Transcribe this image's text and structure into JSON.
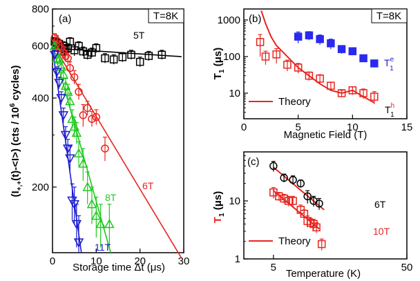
{
  "colors": {
    "black": "#000000",
    "red": "#e8231e",
    "green": "#1ec81e",
    "blue": "#1a1acd",
    "blue_points": "#2a2aee"
  },
  "chart_data": [
    {
      "type": "scatter",
      "panel_label": "(a)",
      "temperature_box": "T=8K",
      "xlabel": "Storage time Δt (μs)",
      "ylabel": "⟨I+,+(t)⟩-⟨I⟩ (cts / 10^6 cycles)",
      "ylabel_parts": {
        "main": "(I",
        "sub1": "+,+",
        "mid": "(t)-<I>) (cts / 10",
        "sup": "6",
        "end": " cycles)"
      },
      "xlim": [
        0,
        30
      ],
      "ylim": [
        120,
        800
      ],
      "yscale": "log",
      "xticks": [
        0,
        10,
        20,
        30
      ],
      "yticks": [
        200,
        400,
        600,
        800
      ],
      "series": [
        {
          "name": "5T",
          "color": "#000000",
          "marker": "square",
          "x": [
            0.5,
            1,
            1.5,
            2,
            2.5,
            3,
            3.5,
            4,
            5,
            6,
            7,
            8,
            9,
            10,
            12,
            14,
            16,
            18,
            20,
            22,
            25
          ],
          "y": [
            620,
            615,
            610,
            575,
            600,
            585,
            590,
            620,
            580,
            600,
            575,
            560,
            570,
            590,
            545,
            540,
            550,
            560,
            530,
            555,
            560
          ],
          "err": [
            20,
            20,
            20,
            20,
            20,
            20,
            20,
            20,
            25,
            20,
            20,
            20,
            20,
            20,
            20,
            20,
            20,
            20,
            20,
            20,
            20
          ],
          "fit": {
            "x": [
              0,
              29.5
            ],
            "y": [
              590,
              552
            ]
          }
        },
        {
          "name": "6T",
          "color": "#e8231e",
          "marker": "circle",
          "x": [
            0.5,
            1,
            1.5,
            2,
            2.5,
            3,
            3.5,
            4,
            5,
            6,
            7,
            8,
            9,
            10,
            12
          ],
          "y": [
            640,
            625,
            600,
            590,
            570,
            555,
            545,
            505,
            470,
            420,
            350,
            370,
            340,
            345,
            270
          ],
          "err": [
            20,
            25,
            25,
            25,
            25,
            25,
            25,
            25,
            25,
            25,
            30,
            20,
            20,
            20,
            25
          ],
          "fit": {
            "x": [
              0,
              29.5
            ],
            "y": [
              610,
              115
            ]
          }
        },
        {
          "name": "8T",
          "color": "#1ec81e",
          "marker": "triangle-up",
          "x": [
            0.5,
            1,
            1.5,
            2,
            2.5,
            3,
            3.5,
            4,
            4.5,
            5,
            5.5,
            6,
            7,
            8,
            9,
            10,
            11,
            13
          ],
          "y": [
            600,
            545,
            540,
            510,
            480,
            440,
            420,
            390,
            340,
            320,
            305,
            260,
            240,
            200,
            175,
            160,
            150,
            150
          ],
          "err": [
            20,
            20,
            20,
            25,
            25,
            25,
            25,
            25,
            25,
            25,
            25,
            25,
            30,
            25,
            25,
            25,
            25,
            25
          ],
          "fit": {
            "x": [
              0,
              13.3
            ],
            "y": [
              600,
              120
            ]
          }
        },
        {
          "name": "11T",
          "color": "#1a1acd",
          "marker": "triangle-down",
          "x": [
            0.5,
            1,
            1.5,
            2,
            2.5,
            3,
            3.5,
            4,
            4.5,
            5,
            5.5,
            6
          ],
          "y": [
            560,
            490,
            450,
            400,
            350,
            300,
            270,
            250,
            180,
            175,
            150,
            130
          ],
          "err": [
            20,
            20,
            20,
            20,
            20,
            20,
            20,
            25,
            25,
            25,
            25,
            30
          ],
          "fit": {
            "x": [
              0,
              6.6
            ],
            "y": [
              585,
              120
            ]
          }
        }
      ]
    },
    {
      "type": "scatter",
      "panel_label": "(b)",
      "temperature_box": "T=8K",
      "xlabel": "Magnetic Field (T)",
      "ylabel": "T1 (μs)",
      "xlim": [
        0,
        15
      ],
      "ylim": [
        2,
        2000
      ],
      "yscale": "log",
      "xticks": [
        0,
        5,
        10,
        15
      ],
      "yticks": [
        10,
        100,
        1000
      ],
      "legend": {
        "label": "Theory",
        "position": "bottom-left"
      },
      "series": [
        {
          "name": "T1^e",
          "color": "#2a2aee",
          "marker": "filled-square",
          "x": [
            5,
            6,
            7,
            8,
            9,
            10,
            11,
            12
          ],
          "y": [
            350,
            380,
            300,
            230,
            160,
            140,
            90,
            65
          ],
          "err": [
            120,
            100,
            90,
            70,
            40,
            30,
            15,
            10
          ]
        },
        {
          "name": "T1^h",
          "color": "#e8231e",
          "marker": "square",
          "x": [
            1.5,
            2,
            3,
            4,
            5,
            6,
            7,
            8,
            9,
            10,
            11,
            12
          ],
          "y": [
            250,
            100,
            115,
            60,
            50,
            30,
            25,
            16,
            10,
            12,
            10,
            8
          ],
          "err": [
            150,
            40,
            50,
            20,
            15,
            8,
            7,
            4,
            2,
            3,
            3,
            3
          ]
        },
        {
          "name": "Theory",
          "color": "#e8231e",
          "type": "line",
          "x": [
            1.6,
            2,
            2.5,
            3,
            4,
            5,
            6,
            7,
            8,
            9,
            10,
            11,
            12
          ],
          "y": [
            1800,
            800,
            350,
            200,
            100,
            50,
            30,
            18,
            12,
            10,
            12,
            8,
            5.5
          ]
        }
      ]
    },
    {
      "type": "scatter",
      "panel_label": "(c)",
      "xlabel": "Temperature (K)",
      "ylabel": "T1 (μs)",
      "xlim": [
        3,
        50
      ],
      "ylim": [
        1,
        70
      ],
      "xscale": "log",
      "yscale": "log",
      "xticks": [
        5,
        50
      ],
      "yticks": [
        1,
        10
      ],
      "legend": {
        "label": "Theory",
        "position": "bottom-left"
      },
      "series": [
        {
          "name": "6T",
          "color": "#000000",
          "marker": "circle",
          "x": [
            5,
            6,
            7,
            8,
            9,
            10,
            11
          ],
          "y": [
            40,
            25,
            23,
            20,
            12,
            10,
            9
          ],
          "err": [
            8,
            4,
            4,
            3,
            3,
            2,
            2
          ]
        },
        {
          "name": "10T",
          "color": "#e8231e",
          "marker": "square",
          "x": [
            5,
            5.5,
            6,
            6.5,
            7,
            8,
            8.5,
            9,
            9.5,
            10,
            10.5,
            11.5
          ],
          "y": [
            14,
            12,
            11,
            10,
            10,
            7,
            6,
            4.5,
            4.2,
            4.0,
            3.5,
            1.8
          ],
          "err": [
            3,
            2,
            2,
            2,
            2,
            1.5,
            1,
            1,
            0.8,
            0.8,
            0.7,
            0.4
          ]
        },
        {
          "name": "Theory 6T",
          "color": "#e8231e",
          "type": "line",
          "x": [
            5,
            12
          ],
          "y": [
            38,
            7
          ]
        },
        {
          "name": "Theory 10T",
          "color": "#e8231e",
          "type": "line",
          "x": [
            5,
            11
          ],
          "y": [
            15,
            3.3
          ]
        }
      ]
    }
  ]
}
